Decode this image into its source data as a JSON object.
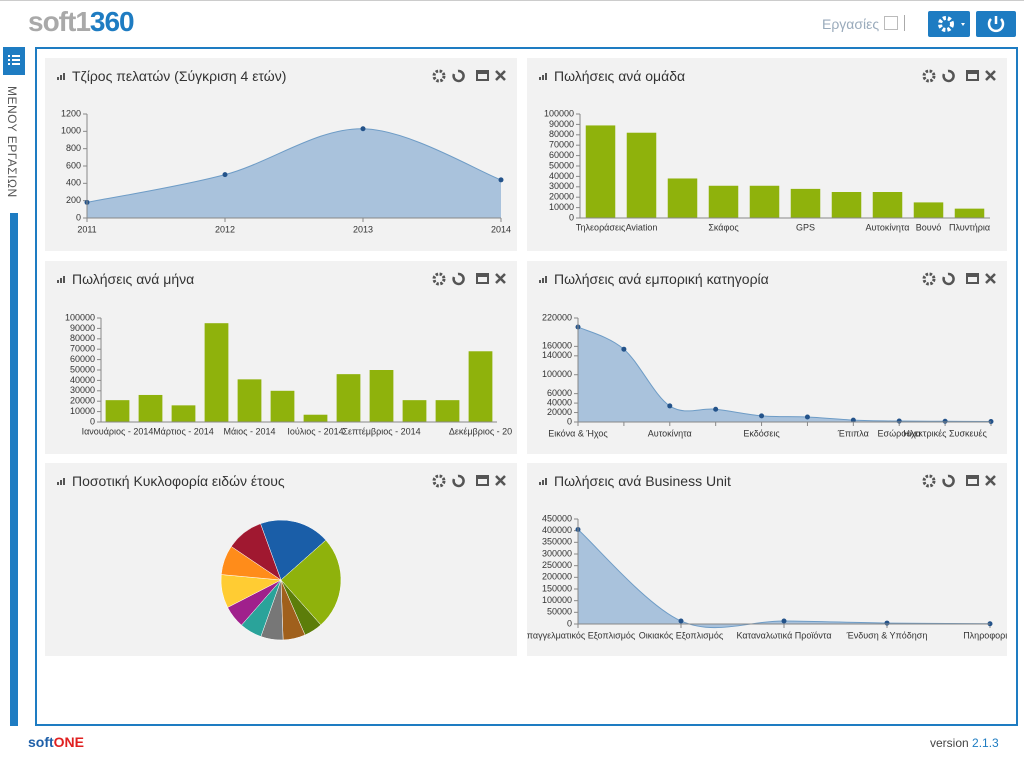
{
  "header": {
    "logo": "soft1",
    "logo_accent": "360",
    "tasks": "Εργασίες"
  },
  "sidebar": {
    "menu": "ΜΕΝΟΥ ΕΡΓΑΣΙΩΝ"
  },
  "footer": {
    "brand": "soft",
    "brand_accent": "ONE",
    "version_label": "version",
    "version": "2.1.3"
  },
  "chart_data": [
    {
      "type": "area",
      "title": "Τζίρος πελατών (Σύγκριση 4 ετών)",
      "categories": [
        "2011",
        "2012",
        "2013",
        "2014"
      ],
      "values": [
        180,
        500,
        1030,
        440
      ],
      "color": "#a9c2dc",
      "line_color": "#6e9cc6",
      "point_color": "#24538a",
      "ylim": [
        0,
        1200
      ],
      "yticks": [
        0,
        200,
        400,
        600,
        800,
        1000,
        1200
      ]
    },
    {
      "type": "bar",
      "title": "Πωλήσεις ανά ομάδα",
      "categories": [
        "Τηλεοράσεις",
        "Aviation",
        null,
        "Σκάφος",
        null,
        "GPS",
        null,
        "Αυτοκίνητα",
        "Βουνό",
        "Πλυντήρια"
      ],
      "values": [
        89000,
        82000,
        38000,
        31000,
        31000,
        28000,
        25000,
        25000,
        15000,
        9000
      ],
      "color": "#8fb20c",
      "ylim": [
        0,
        100000
      ],
      "yticks": [
        0,
        10000,
        20000,
        30000,
        40000,
        50000,
        60000,
        70000,
        80000,
        90000,
        100000
      ]
    },
    {
      "type": "bar",
      "title": "Πωλήσεις ανά μήνα",
      "categories": [
        "Ιανουάριος - 2014",
        null,
        "Μάρτιος - 2014",
        null,
        "Μάιος - 2014",
        null,
        "Ιούλιος - 2014",
        null,
        "Σεπτέμβριος - 2014",
        null,
        null,
        "Δεκέμβριος - 20"
      ],
      "values": [
        21000,
        26000,
        16000,
        95000,
        41000,
        30000,
        7000,
        46000,
        50000,
        21000,
        21000,
        68000
      ],
      "color": "#8fb20c",
      "ylim": [
        0,
        100000
      ],
      "yticks": [
        0,
        10000,
        20000,
        30000,
        40000,
        50000,
        60000,
        70000,
        80000,
        90000,
        100000
      ]
    },
    {
      "type": "area",
      "title": "Πωλήσεις ανά εμπορική κατηγορία",
      "categories": [
        "Εικόνα & Ήχος",
        null,
        "Αυτοκίνητα",
        null,
        "Εκδόσεις",
        null,
        "Έπιπλα",
        "Εσώρουχα",
        "Ηλεκτρικές Συσκευές",
        null
      ],
      "values": [
        201000,
        154000,
        34000,
        27000,
        13000,
        10500,
        4000,
        2000,
        1500,
        1000
      ],
      "color": "#a9c2dc",
      "line_color": "#6e9cc6",
      "point_color": "#24538a",
      "ylim": [
        0,
        220000
      ],
      "yticks": [
        0,
        20000,
        40000,
        60000,
        100000,
        140000,
        160000,
        220000
      ]
    },
    {
      "type": "pie",
      "title": "Ποσοτική Κυκλοφορία ειδών έτους",
      "values": [
        19,
        25,
        5,
        6,
        6,
        6,
        6,
        9,
        8,
        10
      ],
      "colors": [
        "#1a5ea8",
        "#8fb20c",
        "#5c7d0a",
        "#a0601c",
        "#777777",
        "#2aa39a",
        "#a0208c",
        "#ffcc33",
        "#ff8c1a",
        "#a01830"
      ]
    },
    {
      "type": "area",
      "title": "Πωλήσεις ανά Business Unit",
      "categories": [
        "Επαγγελματικός Εξοπλισμός",
        "Οικιακός Εξοπλισμός",
        "Καταναλωτικά Προϊόντα",
        "Ένδυση & Υπόδηση",
        "Πληροφορική"
      ],
      "values": [
        405000,
        13000,
        13000,
        4000,
        1000
      ],
      "color": "#a9c2dc",
      "line_color": "#6e9cc6",
      "point_color": "#24538a",
      "ylim": [
        0,
        450000
      ],
      "yticks": [
        0,
        50000,
        100000,
        150000,
        200000,
        250000,
        300000,
        350000,
        400000,
        450000
      ]
    }
  ]
}
